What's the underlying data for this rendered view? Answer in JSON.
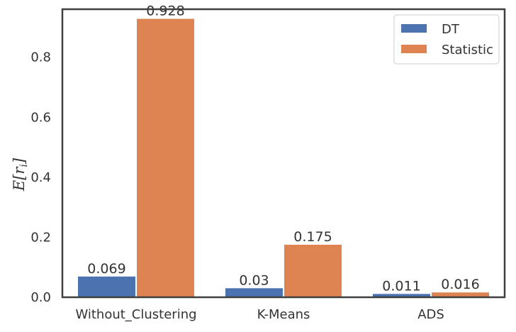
{
  "chart_data": {
    "type": "bar",
    "categories": [
      "Without_Clustering",
      "K-Means",
      "ADS"
    ],
    "series": [
      {
        "name": "DT",
        "values": [
          0.069,
          0.03,
          0.011
        ],
        "labels": [
          "0.069",
          "0.03",
          "0.011"
        ],
        "color": "#4c72b0"
      },
      {
        "name": "Statistic",
        "values": [
          0.928,
          0.175,
          0.016
        ],
        "labels": [
          "0.928",
          "0.175",
          "0.016"
        ],
        "color": "#dd8452"
      }
    ],
    "ylabel": "E[r_i]",
    "ylim": [
      0,
      0.96
    ],
    "yticks": [
      0.0,
      0.2,
      0.4,
      0.6,
      0.8
    ],
    "ytick_labels": [
      "0.0",
      "0.2",
      "0.4",
      "0.6",
      "0.8"
    ],
    "grid": false,
    "legend_position": "top-right",
    "title": "",
    "xlabel": ""
  }
}
